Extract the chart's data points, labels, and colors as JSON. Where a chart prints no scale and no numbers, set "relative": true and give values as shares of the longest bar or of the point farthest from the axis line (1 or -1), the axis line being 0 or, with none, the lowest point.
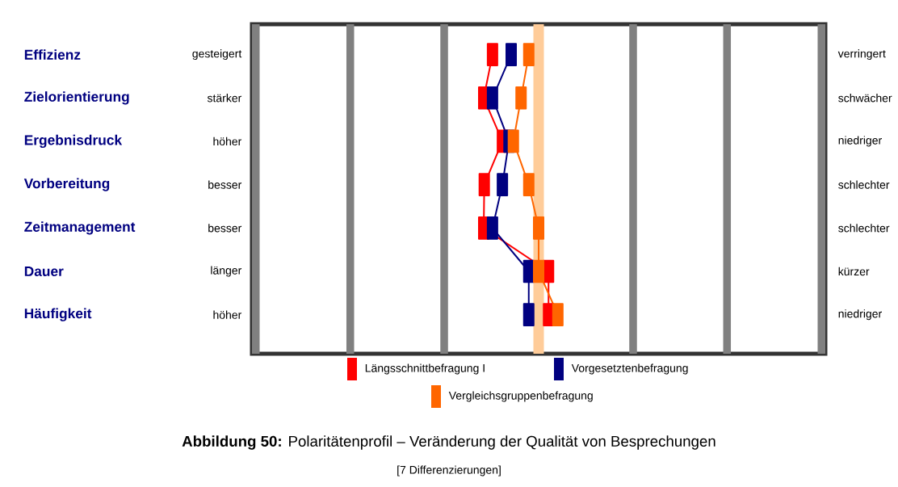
{
  "chart_data": {
    "type": "line",
    "orientation": "horizontal",
    "relative": true,
    "marker": "square",
    "legend": "bottom",
    "title": "**Abbildung  50:** Polaritätenprofil – Veränderung der Qualität von Besprechungen",
    "subtitle": "[7 Differenzierungen]",
    "categories": [
      "Effizienz",
      "Zielorientierung",
      "Ergebnisdruck",
      "Vorbereitung",
      "Zeitmanagement",
      "Dauer",
      "Häufigkeit"
    ],
    "series": [
      {
        "name": "Längsschnittbefragung I",
        "color": "#ff0000",
        "values": [
          -0.84,
          -1,
          -0.66,
          -0.99,
          -1,
          0.18,
          0.18
        ]
      },
      {
        "name": "Vorgesetztenbefragung",
        "color": "#000080",
        "values": [
          -0.5,
          -0.84,
          -0.54,
          -0.66,
          -0.84,
          -0.18,
          -0.18
        ]
      },
      {
        "name": "Vergleichsgruppenbefragung",
        "color": "#ff6600",
        "values": [
          -0.18,
          -0.32,
          -0.46,
          -0.18,
          0,
          0,
          0.35
        ]
      }
    ],
    "bands": [
      {
        "axis": "x",
        "from": -5.22,
        "to": -5.08,
        "color": "#808080"
      },
      {
        "axis": "x",
        "from": -3.5,
        "to": -3.36,
        "color": "#808080"
      },
      {
        "axis": "x",
        "from": -1.79,
        "to": -1.65,
        "color": "#808080"
      },
      {
        "axis": "x",
        "from": 1.65,
        "to": 1.79,
        "color": "#808080"
      },
      {
        "axis": "x",
        "from": 3.36,
        "to": 3.5,
        "color": "#808080"
      },
      {
        "axis": "x",
        "from": 5.08,
        "to": 5.22,
        "color": "#808080"
      }
    ],
    "ref_lines": [
      {
        "axis": "x",
        "value": 0,
        "color": "#ffcc99"
      }
    ],
    "annotations": [
      "gesteigert",
      "verringert",
      "stärker",
      "schwächer",
      "höher",
      "niedriger",
      "besser",
      "schlechter",
      "besser",
      "schlechter",
      "länger",
      "kürzer",
      "höher",
      "niedriger"
    ]
  }
}
